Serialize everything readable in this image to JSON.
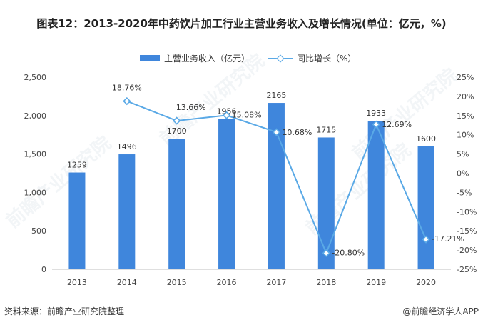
{
  "title": "图表12：2013-2020年中药饮片加工行业主营业务收入及增长情况(单位：亿元，%)",
  "source_note": "资料来源：前瞻产业研究院整理",
  "brand_note": "@前瞻经济学人APP",
  "watermark": "前瞻产业研究院",
  "chart_data": {
    "type": "bar",
    "categories": [
      "2013",
      "2014",
      "2015",
      "2016",
      "2017",
      "2018",
      "2019",
      "2020"
    ],
    "series": [
      {
        "name": "主营业务收入（亿元）",
        "type": "bar",
        "axis": "left",
        "color": "#3f86dc",
        "values": [
          1259,
          1496,
          1700,
          1956,
          2165,
          1715,
          1933,
          1600
        ],
        "labels": [
          "1259",
          "1496",
          "1700",
          "1956",
          "2165",
          "1715",
          "1933",
          "1600"
        ]
      },
      {
        "name": "同比增长（%）",
        "type": "line",
        "axis": "right",
        "color": "#5aa9e6",
        "marker": "diamond",
        "values": [
          null,
          18.76,
          13.66,
          15.08,
          10.68,
          -20.8,
          12.69,
          -17.21
        ],
        "labels": [
          "",
          "18.76%",
          "13.66%",
          "15.08%",
          "10.68%",
          "-20.80%",
          "12.69%",
          "-17.21%"
        ]
      }
    ],
    "y_left": {
      "lim": [
        0,
        2500
      ],
      "ticks": [
        0,
        500,
        1000,
        1500,
        2000,
        2500
      ],
      "tick_labels": [
        "0",
        "500",
        "1,000",
        "1,500",
        "2,000",
        "2,500"
      ]
    },
    "y_right": {
      "lim": [
        -25,
        25
      ],
      "ticks": [
        -25,
        -20,
        -15,
        -10,
        -5,
        0,
        5,
        10,
        15,
        20,
        25
      ],
      "tick_labels": [
        "-25%",
        "-20%",
        "-15%",
        "-10%",
        "-5%",
        "0%",
        "5%",
        "10%",
        "15%",
        "20%",
        "25%"
      ]
    },
    "grid": false,
    "legend": "top-center"
  }
}
